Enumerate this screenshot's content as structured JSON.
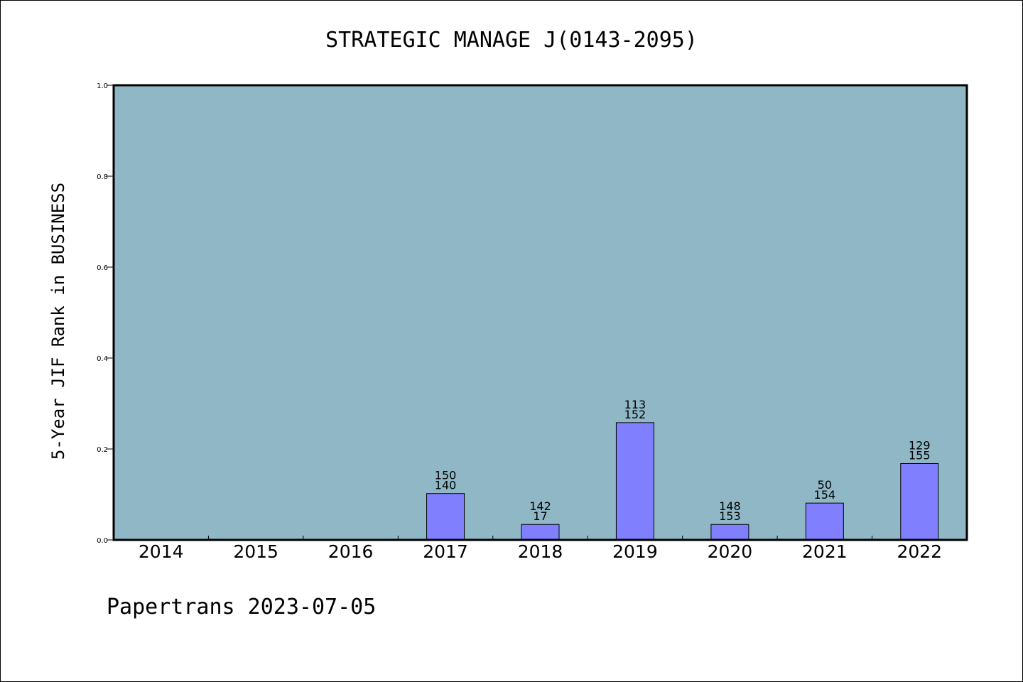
{
  "chart_data": {
    "type": "bar",
    "title": "STRATEGIC MANAGE J(0143-2095)",
    "ylabel": "5-Year JIF Rank in BUSINESS",
    "xlabel": "",
    "categories": [
      "2014",
      "2015",
      "2016",
      "2017",
      "2018",
      "2019",
      "2020",
      "2021",
      "2022"
    ],
    "values": [
      null,
      null,
      null,
      0.102,
      0.034,
      0.258,
      0.034,
      0.081,
      0.168
    ],
    "labels_top": [
      "",
      "",
      "",
      "150",
      "142",
      "113",
      "148",
      "50",
      "129"
    ],
    "labels_bottom": [
      "",
      "",
      "",
      "140",
      "17",
      "152",
      "153",
      "154",
      "155"
    ],
    "ylim": [
      0,
      1.0
    ],
    "yticks": [
      "0.0",
      "0.2",
      "0.4",
      "0.6",
      "0.8",
      "1.0"
    ],
    "grid": false,
    "colors": {
      "plot_bg": "#8fb7c5",
      "bar": "#8080ff",
      "bar_edge": "#000000"
    }
  },
  "footer": "Papertrans 2023-07-05"
}
